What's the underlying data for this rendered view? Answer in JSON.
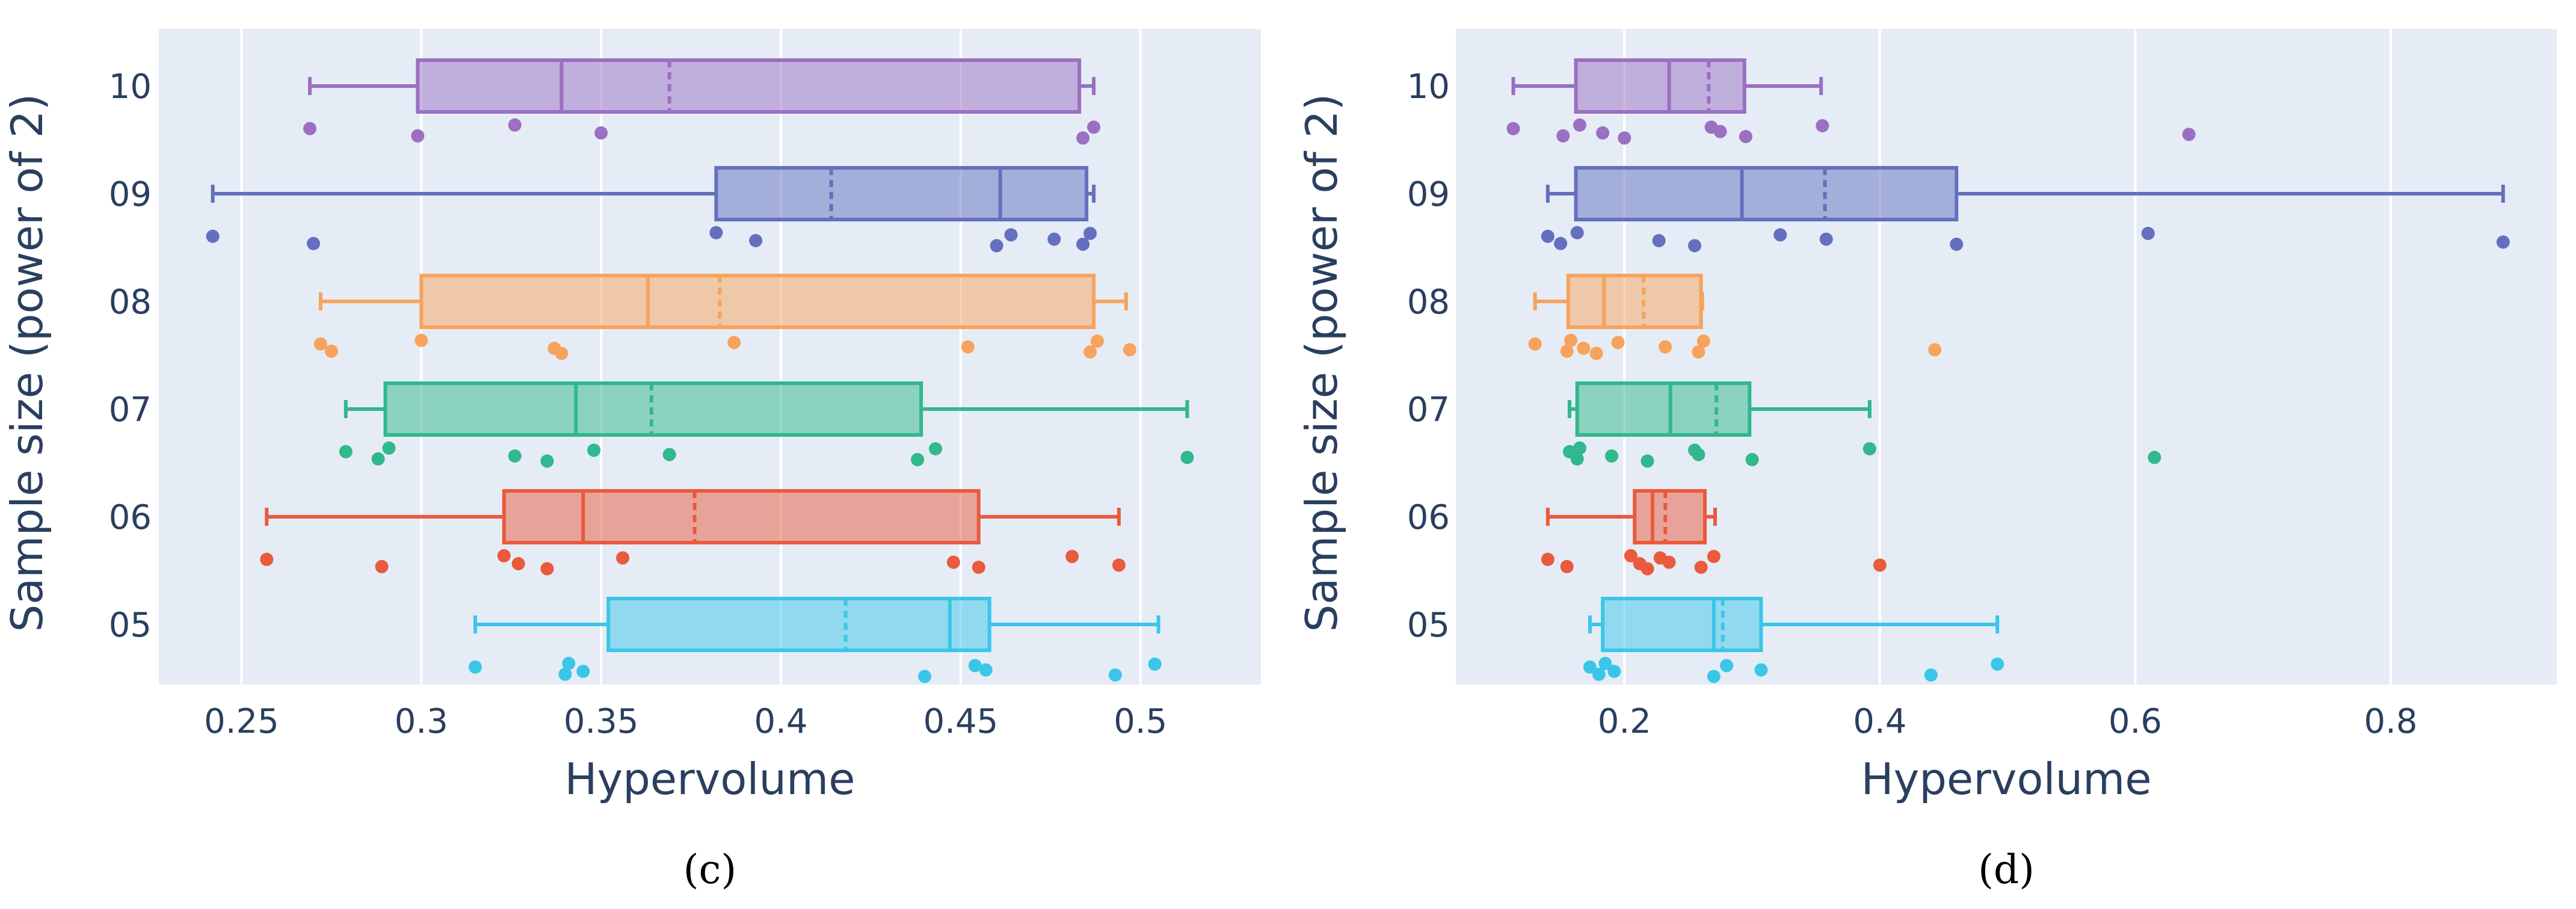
{
  "chart_data": [
    {
      "type": "box",
      "orientation": "horizontal",
      "panel_label": "(c)",
      "xlabel": "Hypervolume",
      "ylabel": "Sample size (power of 2)",
      "xlim": [
        0.227,
        0.5335
      ],
      "xticks": [
        0.25,
        0.3,
        0.35,
        0.4,
        0.45,
        0.5
      ],
      "xtick_labels": [
        "0.25",
        "0.3",
        "0.35",
        "0.4",
        "0.45",
        "0.5"
      ],
      "categories": [
        "05",
        "06",
        "07",
        "08",
        "09",
        "10"
      ],
      "series": [
        {
          "name": "05",
          "color": "#3bc6e8",
          "whisker_low": 0.315,
          "q1": 0.352,
          "median": 0.447,
          "mean": 0.418,
          "q3": 0.458,
          "whisker_high": 0.505,
          "points": [
            0.315,
            0.34,
            0.341,
            0.345,
            0.44,
            0.454,
            0.457,
            0.493,
            0.504
          ]
        },
        {
          "name": "06",
          "color": "#ea5a3c",
          "whisker_low": 0.257,
          "q1": 0.323,
          "median": 0.345,
          "mean": 0.376,
          "q3": 0.455,
          "whisker_high": 0.494,
          "points": [
            0.257,
            0.289,
            0.323,
            0.327,
            0.335,
            0.356,
            0.448,
            0.455,
            0.481,
            0.494
          ]
        },
        {
          "name": "07",
          "color": "#31b88c",
          "whisker_low": 0.279,
          "q1": 0.29,
          "median": 0.343,
          "mean": 0.364,
          "q3": 0.439,
          "whisker_high": 0.513,
          "points": [
            0.279,
            0.288,
            0.291,
            0.326,
            0.335,
            0.348,
            0.369,
            0.438,
            0.443,
            0.513
          ]
        },
        {
          "name": "08",
          "color": "#f7a35c",
          "whisker_low": 0.272,
          "q1": 0.3,
          "median": 0.363,
          "mean": 0.383,
          "q3": 0.487,
          "whisker_high": 0.496,
          "points": [
            0.272,
            0.275,
            0.3,
            0.337,
            0.339,
            0.387,
            0.452,
            0.486,
            0.488,
            0.497
          ]
        },
        {
          "name": "09",
          "color": "#6470bd",
          "whisker_low": 0.242,
          "q1": 0.382,
          "median": 0.461,
          "mean": 0.414,
          "q3": 0.485,
          "whisker_high": 0.487,
          "points": [
            0.242,
            0.27,
            0.382,
            0.393,
            0.46,
            0.464,
            0.476,
            0.484,
            0.486
          ]
        },
        {
          "name": "10",
          "color": "#9b6fc1",
          "whisker_low": 0.269,
          "q1": 0.299,
          "median": 0.339,
          "mean": 0.369,
          "q3": 0.483,
          "whisker_high": 0.487,
          "points": [
            0.269,
            0.299,
            0.326,
            0.35,
            0.484,
            0.487
          ]
        }
      ]
    },
    {
      "type": "box",
      "orientation": "horizontal",
      "panel_label": "(d)",
      "xlabel": "Hypervolume",
      "ylabel": "Sample size (power of 2)",
      "xlim": [
        0.068,
        0.93
      ],
      "xticks": [
        0.2,
        0.4,
        0.6,
        0.8
      ],
      "xtick_labels": [
        "0.2",
        "0.4",
        "0.6",
        "0.8"
      ],
      "categories": [
        "05",
        "06",
        "07",
        "08",
        "09",
        "10"
      ],
      "series": [
        {
          "name": "05",
          "color": "#3bc6e8",
          "whisker_low": 0.173,
          "q1": 0.183,
          "median": 0.27,
          "mean": 0.277,
          "q3": 0.307,
          "whisker_high": 0.492,
          "points": [
            0.173,
            0.18,
            0.185,
            0.192,
            0.27,
            0.28,
            0.307,
            0.44,
            0.492
          ]
        },
        {
          "name": "06",
          "color": "#ea5a3c",
          "whisker_low": 0.14,
          "q1": 0.208,
          "median": 0.222,
          "mean": 0.232,
          "q3": 0.263,
          "whisker_high": 0.271,
          "points": [
            0.14,
            0.155,
            0.205,
            0.212,
            0.218,
            0.228,
            0.235,
            0.26,
            0.27,
            0.4
          ]
        },
        {
          "name": "07",
          "color": "#31b88c",
          "whisker_low": 0.157,
          "q1": 0.163,
          "median": 0.236,
          "mean": 0.272,
          "q3": 0.298,
          "whisker_high": 0.392,
          "points": [
            0.157,
            0.163,
            0.165,
            0.19,
            0.218,
            0.255,
            0.258,
            0.3,
            0.392,
            0.615
          ]
        },
        {
          "name": "08",
          "color": "#f7a35c",
          "whisker_low": 0.13,
          "q1": 0.156,
          "median": 0.184,
          "mean": 0.215,
          "q3": 0.26,
          "whisker_high": 0.261,
          "points": [
            0.13,
            0.155,
            0.158,
            0.168,
            0.178,
            0.195,
            0.232,
            0.258,
            0.262,
            0.443
          ]
        },
        {
          "name": "09",
          "color": "#6470bd",
          "whisker_low": 0.14,
          "q1": 0.162,
          "median": 0.292,
          "mean": 0.357,
          "q3": 0.46,
          "whisker_high": 0.888,
          "points": [
            0.14,
            0.15,
            0.163,
            0.227,
            0.255,
            0.322,
            0.358,
            0.46,
            0.61,
            0.888
          ]
        },
        {
          "name": "10",
          "color": "#9b6fc1",
          "whisker_low": 0.113,
          "q1": 0.162,
          "median": 0.235,
          "mean": 0.266,
          "q3": 0.294,
          "whisker_high": 0.354,
          "points": [
            0.113,
            0.152,
            0.165,
            0.183,
            0.2,
            0.268,
            0.275,
            0.295,
            0.355,
            0.642
          ]
        }
      ]
    }
  ]
}
